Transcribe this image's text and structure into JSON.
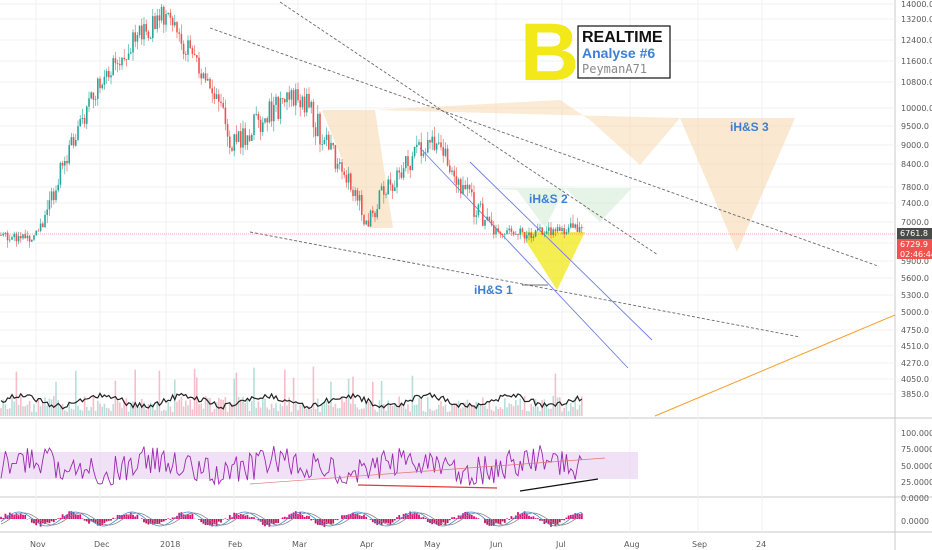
{
  "chart_data": {
    "type": "candlestick",
    "title": "",
    "price_axis": {
      "ticks": [
        "14000.0",
        "13200.0",
        "12400.0",
        "11600.0",
        "10800.0",
        "10000.0",
        "9500.0",
        "9000.0",
        "8400.0",
        "7800.0",
        "7400.0",
        "7000.0",
        "6200.0",
        "5900.0",
        "5600.0",
        "5300.0",
        "5000.0",
        "4750.0",
        "4510.0",
        "4270.0",
        "4050.0",
        "3850.0"
      ],
      "current_price": "6761.8",
      "badge_2": "6729.9",
      "countdown": "02:46:44"
    },
    "rsi_axis": {
      "ticks": [
        "100.0000",
        "75.0000",
        "50.0000",
        "25.0000",
        "0.0000"
      ]
    },
    "macd_axis": {
      "ticks": [
        "0.0000"
      ]
    },
    "time_axis": {
      "ticks": [
        "Nov",
        "Dec",
        "2018",
        "Feb",
        "Mar",
        "Apr",
        "May",
        "Jun",
        "Jul",
        "Aug",
        "Sep",
        "24"
      ]
    },
    "annotations": [
      "iH&S 1",
      "iH&S 2",
      "iH&S 3"
    ],
    "series": [
      {
        "months": [
          "Nov",
          "Dec",
          "2018",
          "Feb",
          "Mar",
          "Apr",
          "May",
          "Jun",
          "Jul"
        ],
        "approx_close": [
          6500,
          11000,
          13500,
          9000,
          10500,
          7000,
          9200,
          6500,
          6760
        ]
      }
    ],
    "colors": {
      "up": "#26a69a",
      "down": "#ef5350",
      "rsi": "#9c27b0",
      "pattern_fill": "#f8d9b0",
      "yellow": "#f2e81a"
    }
  },
  "logo": {
    "symbol": "B",
    "title": "REALTIME",
    "subtitle": "Analyse #6",
    "author": "PeymanA71"
  }
}
